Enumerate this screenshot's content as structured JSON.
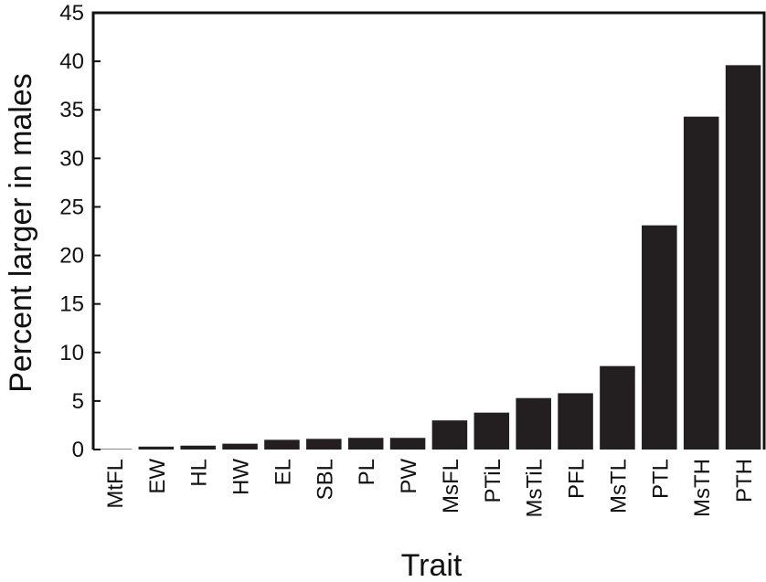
{
  "chart_data": {
    "type": "bar",
    "title": "",
    "xlabel": "Trait",
    "ylabel": "Percent larger in males",
    "ylim": [
      0,
      45
    ],
    "yticks": [
      0,
      5,
      10,
      15,
      20,
      25,
      30,
      35,
      40,
      45
    ],
    "grid": false,
    "legend": "none",
    "bar_color": "#231f20",
    "categories": [
      "MtFL",
      "EW",
      "HL",
      "HW",
      "EL",
      "SBL",
      "PL",
      "PW",
      "MsFL",
      "PTiL",
      "MsTiL",
      "PFL",
      "MsTL",
      "PTL",
      "MsTH",
      "PTH"
    ],
    "values": [
      0.05,
      0.3,
      0.4,
      0.6,
      1.0,
      1.1,
      1.2,
      1.2,
      3.0,
      3.8,
      5.3,
      5.8,
      8.6,
      23.1,
      34.3,
      39.6
    ]
  }
}
